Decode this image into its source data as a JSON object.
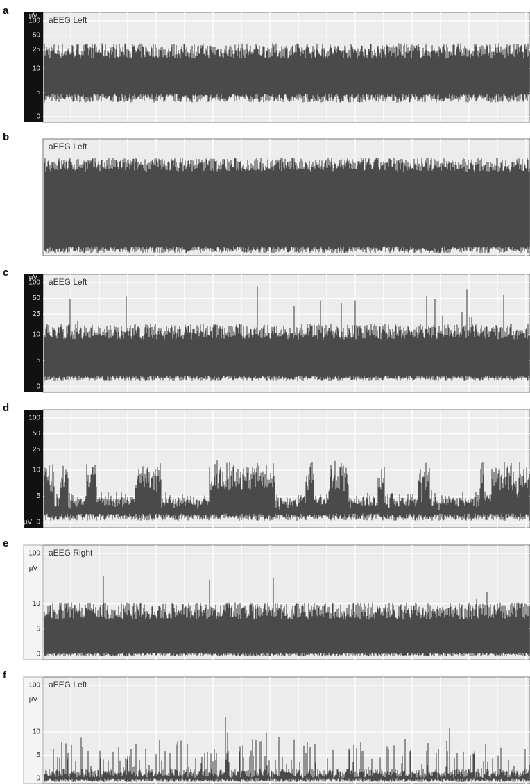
{
  "panels": [
    {
      "letter": "a",
      "channel": "aEEG Left",
      "unit": "µV",
      "yticks": [
        100,
        50,
        25,
        10,
        5,
        0
      ]
    },
    {
      "letter": "b",
      "channel": "aEEG Left"
    },
    {
      "letter": "c",
      "channel": "aEEG Left",
      "unit": "µV",
      "yticks": [
        100,
        50,
        25,
        10,
        5,
        0
      ]
    },
    {
      "letter": "d",
      "unit": "µV",
      "yticks": [
        100,
        50,
        25,
        10,
        5,
        0
      ]
    },
    {
      "letter": "e",
      "channel": "aEEG Right",
      "unit": "µV",
      "yticks": [
        100,
        10,
        5,
        0
      ]
    },
    {
      "letter": "f",
      "channel": "aEEG Left",
      "unit": "µV",
      "yticks": [
        100,
        10,
        5,
        0
      ]
    }
  ]
}
